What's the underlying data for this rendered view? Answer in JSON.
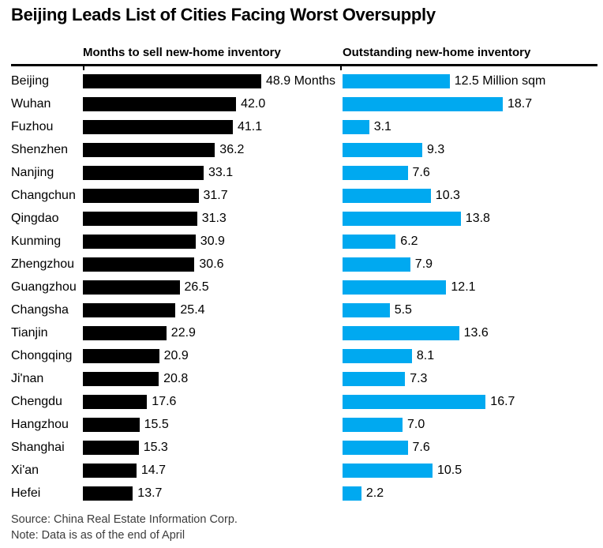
{
  "title": "Beijing Leads List of Cities Facing Worst Oversupply",
  "footer": {
    "source_line": "Source: China Real Estate Information Corp.",
    "note_line": "Note: Data is as of the end of April"
  },
  "colors": {
    "months_bar": "#000000",
    "inventory_bar": "#00A9F0",
    "rule": "#000000",
    "footer_text": "#3c3c3c"
  },
  "chart_data": {
    "type": "bar",
    "orientation": "horizontal",
    "categories": [
      "Beijing",
      "Wuhan",
      "Fuzhou",
      "Shenzhen",
      "Nanjing",
      "Changchun",
      "Qingdao",
      "Kunming",
      "Zhengzhou",
      "Guangzhou",
      "Changsha",
      "Tianjin",
      "Chongqing",
      "Ji'nan",
      "Chengdu",
      "Hangzhou",
      "Shanghai",
      "Xi'an",
      "Hefei"
    ],
    "series": [
      {
        "name": "Months to sell new-home inventory",
        "unit": "Months",
        "color": "#000000",
        "values": [
          48.9,
          42.0,
          41.1,
          36.2,
          33.1,
          31.7,
          31.3,
          30.9,
          30.6,
          26.5,
          25.4,
          22.9,
          20.9,
          20.8,
          17.6,
          15.5,
          15.3,
          14.7,
          13.7
        ]
      },
      {
        "name": "Outstanding new-home inventory",
        "unit": "Million sqm",
        "color": "#00A9F0",
        "values": [
          12.5,
          18.7,
          3.1,
          9.3,
          7.6,
          10.3,
          13.8,
          6.2,
          7.9,
          12.1,
          5.5,
          13.6,
          8.1,
          7.3,
          16.7,
          7.0,
          7.6,
          10.5,
          2.2
        ]
      }
    ],
    "value_label_decimals": 1,
    "unit_suffix_on_first_row_only": true,
    "xlim_left": [
      0,
      48.9
    ],
    "xlim_right": [
      0,
      18.7
    ],
    "grid": false,
    "legend_position": "column-headers"
  }
}
